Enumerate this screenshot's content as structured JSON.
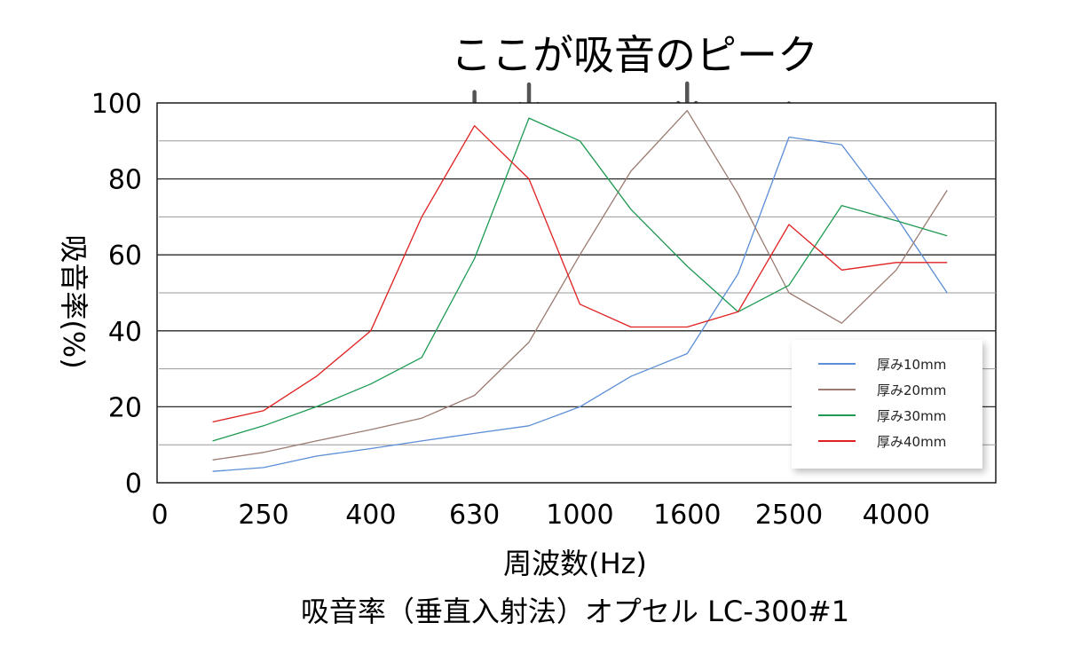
{
  "chart_data": {
    "type": "line",
    "title": "ここが吸音のピーク",
    "xlabel": "周波数(Hz)",
    "ylabel": "吸音率(%)",
    "caption": "吸音率（垂直入射法）オプセル LC-300#1",
    "x_tick_labels": [
      "0",
      "250",
      "400",
      "630",
      "1000",
      "1600",
      "2500",
      "4000"
    ],
    "y_ticks": [
      0,
      20,
      40,
      60,
      80,
      100
    ],
    "ylim": [
      0,
      100
    ],
    "grid": "horizontal",
    "legend_position": "bottom-right",
    "peak_markers": [
      "ここが吸音のピーク"
    ],
    "x": [
      200,
      250,
      315,
      400,
      500,
      630,
      800,
      1000,
      1250,
      1600,
      2000,
      2500,
      3150,
      4000,
      5000
    ],
    "series": [
      {
        "name": "厚み10mm",
        "color": "#5b8ed6",
        "values": [
          3,
          4,
          7,
          9,
          11,
          13,
          15,
          20,
          28,
          34,
          55,
          91,
          89,
          70,
          50
        ]
      },
      {
        "name": "厚み20mm",
        "color": "#9b7b72",
        "values": [
          6,
          8,
          11,
          14,
          17,
          23,
          37,
          60,
          82,
          98,
          76,
          50,
          42,
          56,
          77
        ]
      },
      {
        "name": "厚み30mm",
        "color": "#1e9a52",
        "values": [
          11,
          15,
          20,
          26,
          33,
          59,
          96,
          90,
          72,
          57,
          45,
          52,
          73,
          69,
          65
        ]
      },
      {
        "name": "厚み40mm",
        "color": "#e02020",
        "values": [
          16,
          19,
          28,
          40,
          70,
          94,
          80,
          47,
          41,
          41,
          45,
          68,
          56,
          58,
          58
        ]
      }
    ]
  }
}
